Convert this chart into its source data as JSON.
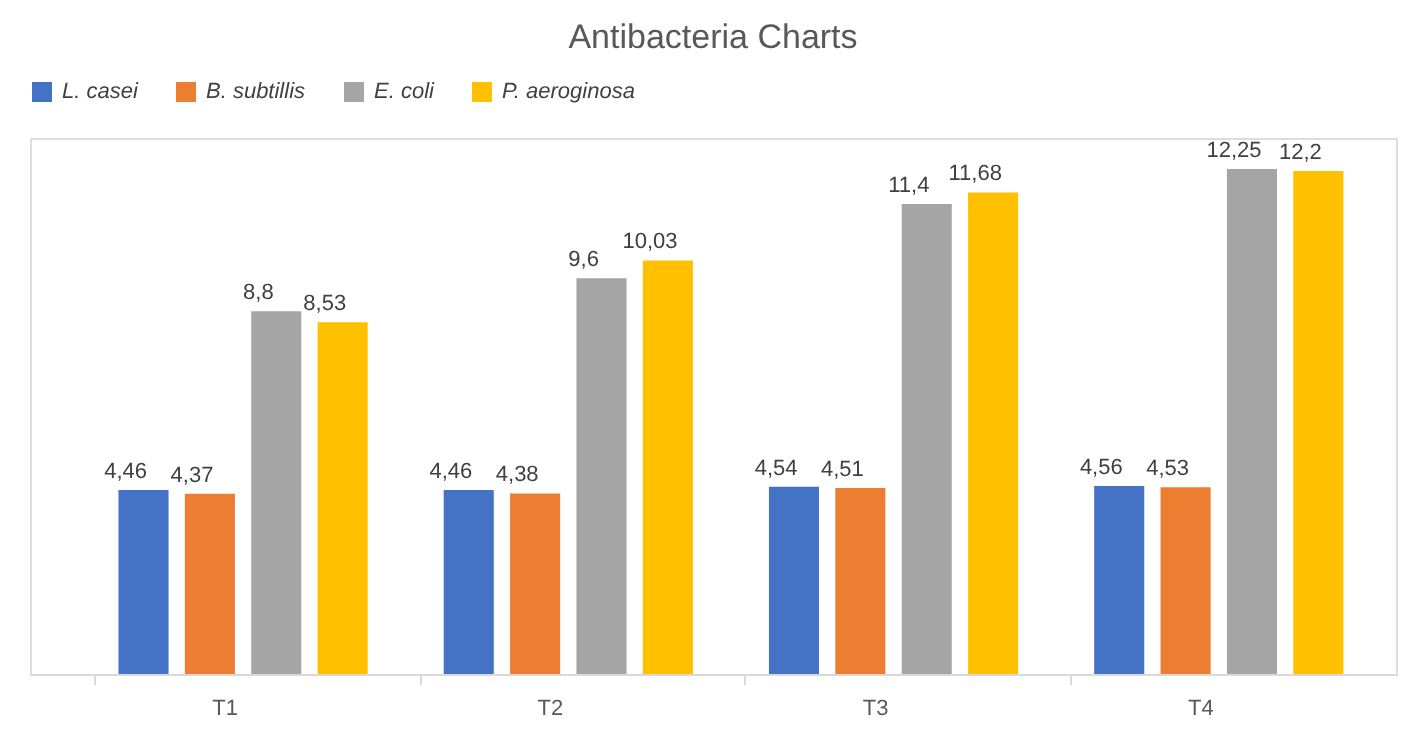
{
  "chart_data": {
    "type": "bar",
    "title": "Antibacteria Charts",
    "categories": [
      "T1",
      "T2",
      "T3",
      "T4"
    ],
    "series": [
      {
        "name": "L. casei",
        "color": "#4472c4",
        "values": [
          4.46,
          4.46,
          4.54,
          4.56
        ],
        "value_labels": [
          "4,46",
          "4,46",
          "4,54",
          "4,56"
        ]
      },
      {
        "name": "B. subtillis",
        "color": "#ed7d31",
        "values": [
          4.37,
          4.38,
          4.51,
          4.53
        ],
        "value_labels": [
          "4,37",
          "4,38",
          "4,51",
          "4,53"
        ]
      },
      {
        "name": "E. coli",
        "color": "#a5a5a5",
        "values": [
          8.8,
          9.6,
          11.4,
          12.25
        ],
        "value_labels": [
          "8,8",
          "9,6",
          "11,4",
          "12,25"
        ]
      },
      {
        "name": "P. aeroginosa",
        "color": "#ffc000",
        "values": [
          8.53,
          10.03,
          11.68,
          12.2
        ],
        "value_labels": [
          "8,53",
          "10,03",
          "11,68",
          "12,2"
        ]
      }
    ],
    "legend": "top",
    "grid": false,
    "tick_labels": "x"
  }
}
